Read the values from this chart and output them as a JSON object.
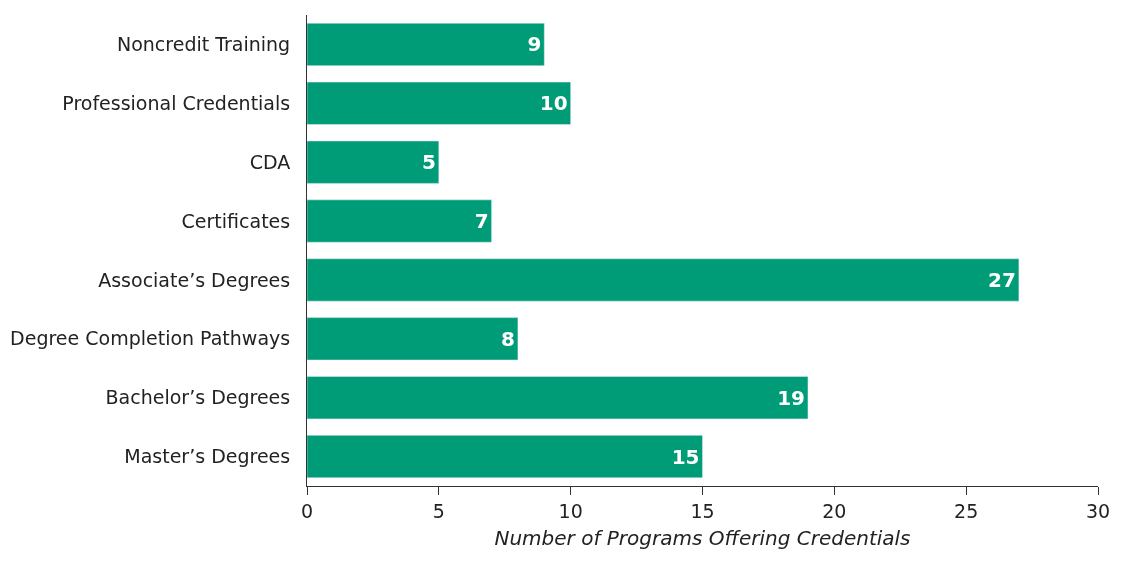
{
  "chart_data": {
    "type": "bar",
    "orientation": "horizontal",
    "xlabel": "Number of Programs Offering Credentials",
    "categories": [
      "Noncredit Training",
      "Professional Credentials",
      "CDA",
      "Certificates",
      "Associate’s Degrees",
      "Degree Completion Pathways",
      "Bachelor’s Degrees",
      "Master’s Degrees"
    ],
    "values": [
      9,
      10,
      5,
      7,
      27,
      8,
      19,
      15
    ],
    "color": "#009b77",
    "xlim": [
      0,
      30
    ],
    "xticks": [
      0,
      5,
      10,
      15,
      20,
      25,
      30
    ],
    "data_labels": true
  }
}
